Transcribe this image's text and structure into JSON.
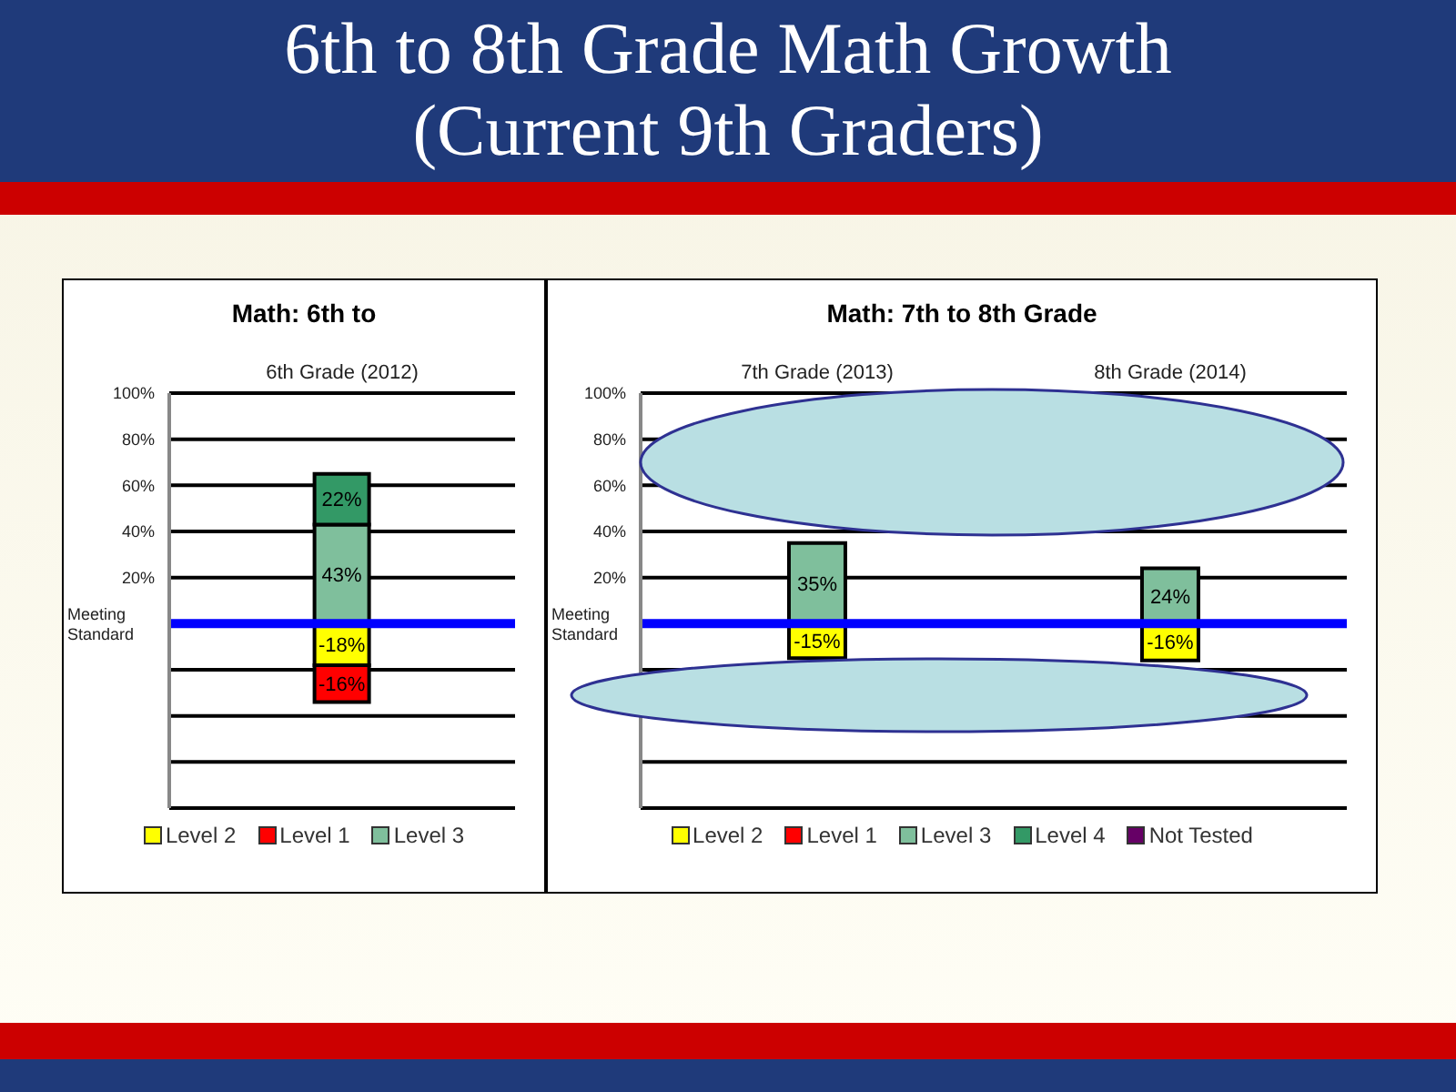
{
  "chart_data": [
    {
      "type": "bar",
      "title": "Math: 6th to",
      "annotations": [
        "6th to 8th Grade Math Growth (Current 9th Graders)"
      ],
      "categories": [
        "6th Grade (2012)"
      ],
      "stacked": true,
      "series": [
        {
          "name": "Level 2",
          "color": "#ffff00",
          "values": [
            -18
          ],
          "value_labels": [
            "-18%"
          ]
        },
        {
          "name": "Level 1",
          "color": "#ff0000",
          "values": [
            -16
          ],
          "value_labels": [
            "-16%"
          ]
        },
        {
          "name": "Level 3",
          "color": "#7fbf9c",
          "values": [
            43
          ],
          "value_labels": [
            "43%"
          ]
        },
        {
          "color": "#339966",
          "values": [
            22
          ],
          "value_labels": [
            "22%"
          ]
        }
      ],
      "ylim": [
        -80,
        100
      ],
      "yticks": [
        {
          "value": -80,
          "label": null
        },
        {
          "value": -60,
          "label": null
        },
        {
          "value": -40,
          "label": null
        },
        {
          "value": -20,
          "label": null
        },
        {
          "value": 0,
          "label": null
        },
        {
          "value": 20,
          "label": "20%"
        },
        {
          "value": 40,
          "label": "40%"
        },
        {
          "value": 60,
          "label": "60%"
        },
        {
          "value": 80,
          "label": "80%"
        },
        {
          "value": 100,
          "label": "100%"
        }
      ],
      "grid": "y",
      "legend": "bottom",
      "ref_lines": [
        {
          "axis": "y",
          "value": 0,
          "label": "Meeting Standard",
          "color": "#0000ff"
        }
      ]
    },
    {
      "type": "bar",
      "title": "Math: 7th to 8th Grade",
      "categories": [
        "7th Grade (2013)",
        "8th Grade (2014)"
      ],
      "stacked": true,
      "series": [
        {
          "name": "Level 2",
          "color": "#ffff00",
          "values": [
            -15,
            -16
          ],
          "value_labels": [
            "-15%",
            "-16%"
          ]
        },
        {
          "name": "Level 1",
          "color": "#ff0000",
          "values": [
            null,
            null
          ],
          "value_labels": [
            null,
            null
          ]
        },
        {
          "name": "Level 3",
          "color": "#7fbf9c",
          "values": [
            35,
            24
          ],
          "value_labels": [
            "35%",
            "24%"
          ]
        },
        {
          "name": "Level 4",
          "color": "#339966",
          "values": [
            null,
            null
          ],
          "value_labels": [
            null,
            null
          ]
        },
        {
          "name": "Not Tested",
          "color": "#660066",
          "values": [
            null,
            null
          ],
          "value_labels": [
            null,
            null
          ]
        }
      ],
      "ylim": [
        -80,
        100
      ],
      "yticks": [
        {
          "value": -80,
          "label": null
        },
        {
          "value": -60,
          "label": null
        },
        {
          "value": -40,
          "label": null
        },
        {
          "value": -20,
          "label": null
        },
        {
          "value": 0,
          "label": null
        },
        {
          "value": 20,
          "label": "20%"
        },
        {
          "value": 40,
          "label": "40%"
        },
        {
          "value": 60,
          "label": "60%"
        },
        {
          "value": 80,
          "label": "80%"
        },
        {
          "value": 100,
          "label": "100%"
        }
      ],
      "grid": "y",
      "legend": "bottom",
      "ref_lines": [
        {
          "axis": "y",
          "value": 0,
          "label": "Meeting Standard",
          "color": "#0000ff"
        }
      ]
    }
  ]
}
